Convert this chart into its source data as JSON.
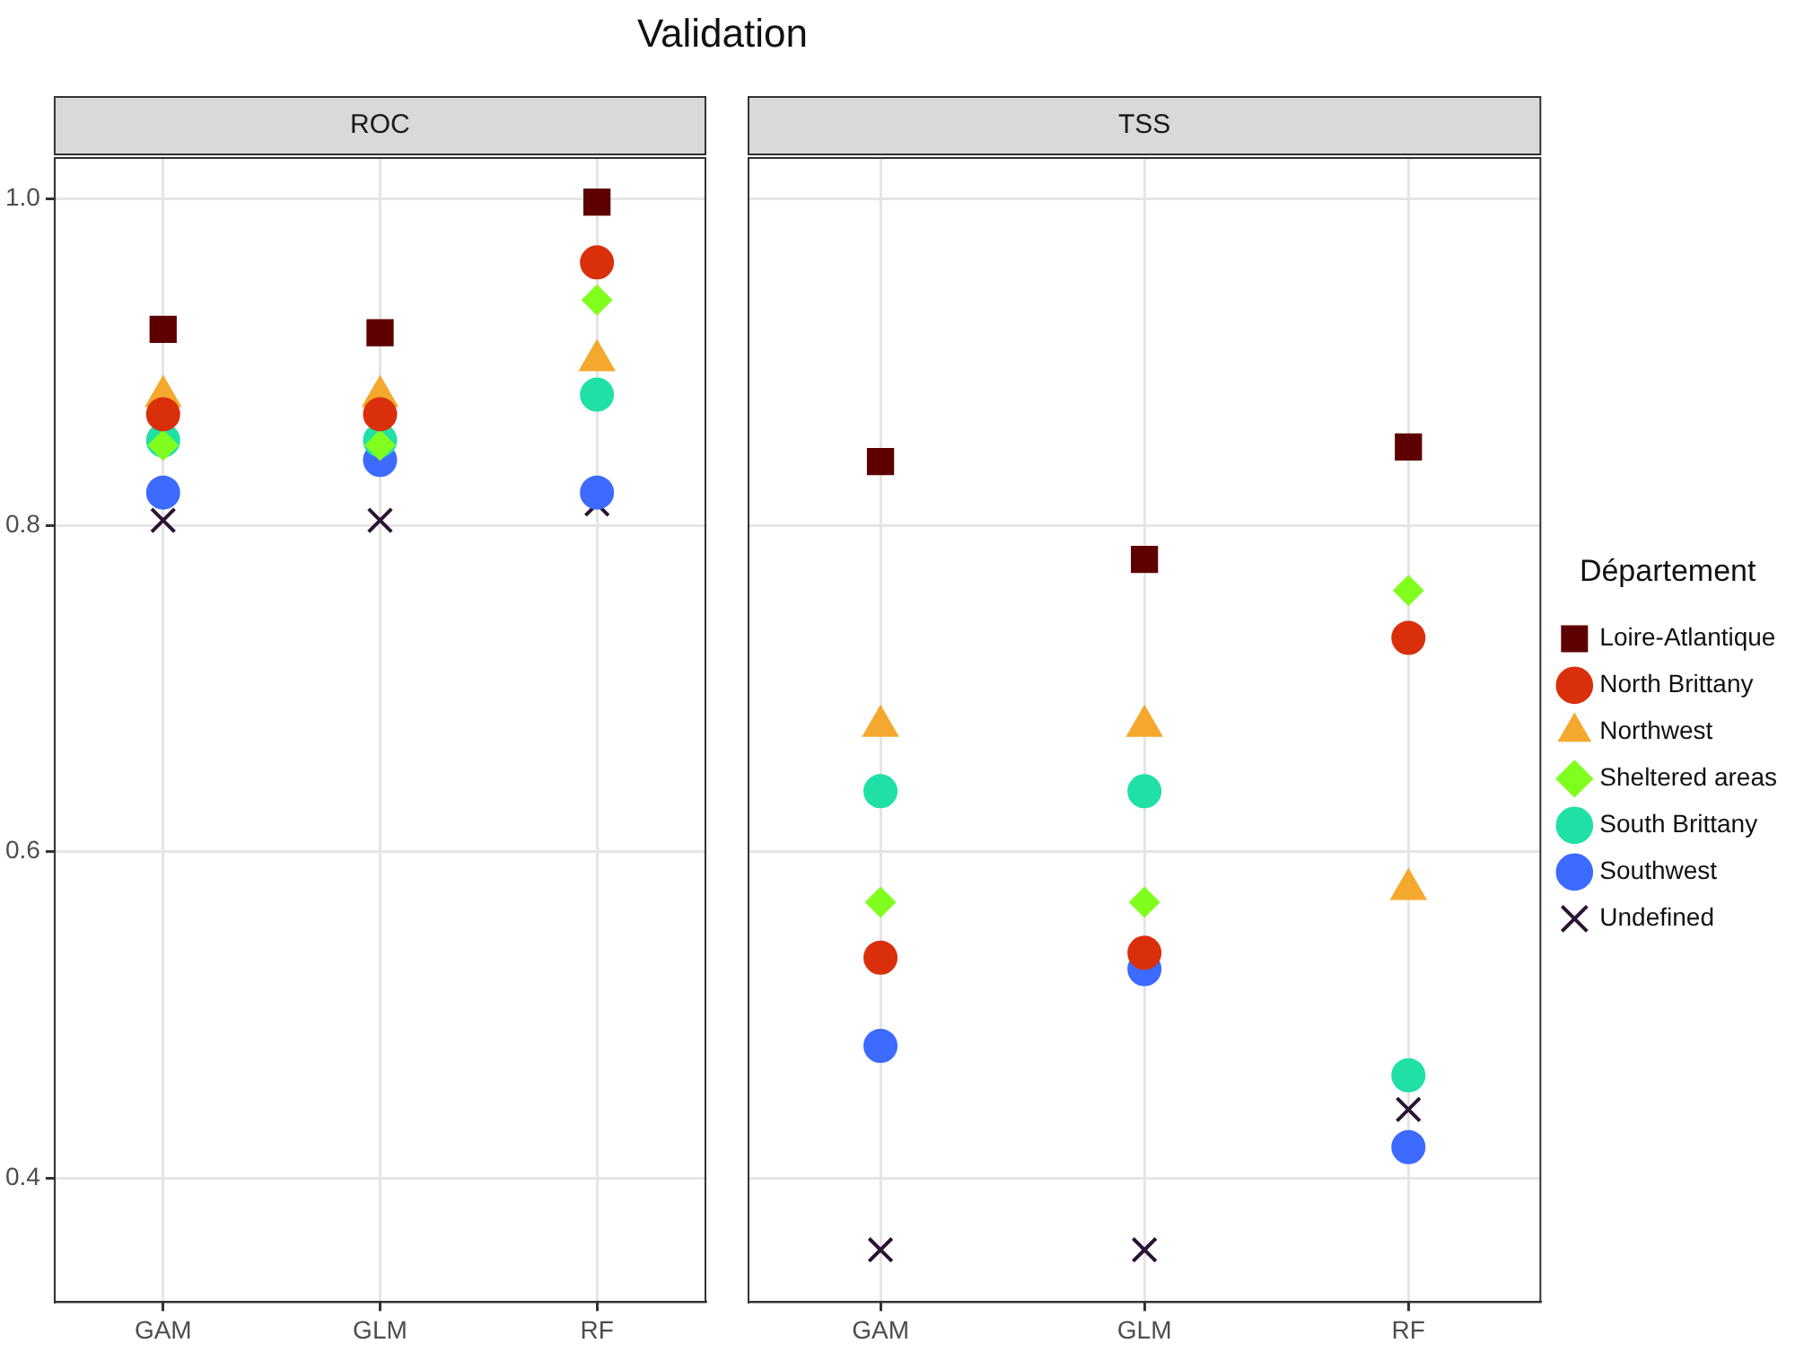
{
  "chart_data": [
    {
      "type": "scatter",
      "title": "Validation",
      "subtitle": "ROC",
      "categories": [
        "GAM",
        "GLM",
        "RF"
      ],
      "ylim": [
        0.324,
        1.025
      ],
      "yticks": [
        {
          "value": 0.4,
          "label": "0.4"
        },
        {
          "value": 0.6,
          "label": "0.6"
        },
        {
          "value": 0.8,
          "label": "0.8"
        },
        {
          "value": 1.0,
          "label": "1.0"
        }
      ],
      "grid": true,
      "legend": false,
      "series": [
        {
          "color": "#5e0000",
          "marker": "square",
          "values": [
            0.92,
            0.918,
            0.998
          ]
        },
        {
          "color": "#d9300b",
          "marker": "circle",
          "values": [
            0.868,
            0.868,
            0.961
          ]
        },
        {
          "color": "#f5a82e",
          "marker": "triangle",
          "values": [
            0.879,
            0.879,
            0.901
          ]
        },
        {
          "color": "#80ff1f",
          "marker": "diamond",
          "values": [
            0.849,
            0.849,
            0.938
          ]
        },
        {
          "color": "#21e0a7",
          "marker": "circle",
          "values": [
            0.852,
            0.852,
            0.88
          ]
        },
        {
          "color": "#3d6bff",
          "marker": "circle",
          "values": [
            0.82,
            0.84,
            0.82
          ]
        },
        {
          "color": "#2b1433",
          "marker": "cross",
          "values": [
            0.803,
            0.803,
            0.813
          ]
        }
      ]
    },
    {
      "type": "scatter",
      "subtitle": "TSS",
      "categories": [
        "GAM",
        "GLM",
        "RF"
      ],
      "ylim": [
        0.324,
        1.025
      ],
      "yticks": [
        0.4,
        0.6,
        0.8,
        1.0
      ],
      "tick_labels": "x",
      "grid": true,
      "legend": "right",
      "legend_title": "Département",
      "series": [
        {
          "name": "Loire-Atlantique",
          "color": "#5e0000",
          "marker": "square",
          "values": [
            0.839,
            0.779,
            0.848
          ]
        },
        {
          "name": "North Brittany",
          "color": "#d9300b",
          "marker": "circle",
          "values": [
            0.535,
            0.538,
            0.731
          ]
        },
        {
          "name": "Northwest",
          "color": "#f5a82e",
          "marker": "triangle",
          "values": [
            0.677,
            0.677,
            0.577
          ]
        },
        {
          "name": "Sheltered areas",
          "color": "#80ff1f",
          "marker": "diamond",
          "values": [
            0.569,
            0.569,
            0.76
          ]
        },
        {
          "name": "South Brittany",
          "color": "#21e0a7",
          "marker": "circle",
          "values": [
            0.637,
            0.637,
            0.463
          ]
        },
        {
          "name": "Southwest",
          "color": "#3d6bff",
          "marker": "circle",
          "values": [
            0.481,
            0.528,
            0.419
          ]
        },
        {
          "name": "Undefined",
          "color": "#2b1433",
          "marker": "cross",
          "values": [
            0.356,
            0.356,
            0.442
          ]
        }
      ]
    }
  ]
}
